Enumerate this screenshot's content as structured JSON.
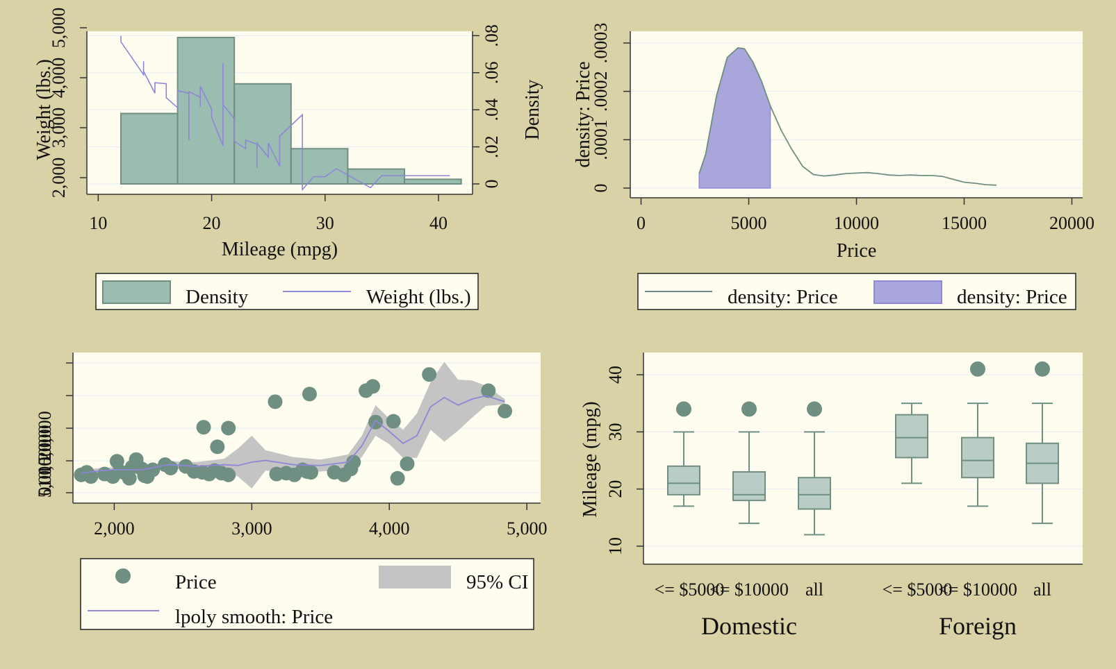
{
  "colors": {
    "background": "#d8d2a6",
    "plot_bg": "#fffcf0",
    "teal": "#6f8f82",
    "teal_fill": "#9bbcb0",
    "purple": "#8e86d6",
    "purple_fill": "#a9a6dc",
    "ci_gray": "#c4c4c4",
    "grid": "#e6eef2"
  },
  "chart_data": [
    {
      "type": "bar",
      "xlabel": "Mileage (mpg)",
      "ylabel_left": "Weight (lbs.)",
      "ylabel_right": "Density",
      "xlim": [
        9,
        43
      ],
      "ylim_density": [
        0,
        0.085
      ],
      "ylim_weight": [
        1500,
        5250
      ],
      "x_ticks": [
        "10",
        "20",
        "30",
        "40"
      ],
      "y_ticks_density": [
        "0",
        ".02",
        ".04",
        ".06",
        ".08"
      ],
      "y_ticks_weight": [
        "2,000",
        "3,000",
        "4,000",
        "5,000"
      ],
      "bins": [
        [
          12,
          17
        ],
        [
          17,
          22
        ],
        [
          22,
          27
        ],
        [
          27,
          32
        ],
        [
          32,
          37
        ],
        [
          37,
          42
        ]
      ],
      "density": [
        0.038,
        0.079,
        0.054,
        0.019,
        0.008,
        0.0025
      ],
      "weight_x": [
        12,
        12,
        14,
        14,
        14,
        15,
        15,
        16,
        16,
        16,
        17,
        17,
        17,
        18,
        18,
        18,
        19,
        19,
        19,
        20,
        20,
        21,
        21,
        21,
        22,
        22,
        22,
        23,
        23,
        24,
        24,
        24,
        25,
        25,
        26,
        26,
        28,
        28,
        28,
        29,
        30,
        31,
        34,
        35,
        41
      ],
      "weight_y": [
        4840,
        4720,
        4060,
        4330,
        4130,
        3690,
        3900,
        3880,
        3670,
        3600,
        3400,
        3470,
        3740,
        3690,
        2750,
        3720,
        3610,
        3420,
        3830,
        3370,
        3210,
        2640,
        4290,
        3460,
        3180,
        2830,
        2730,
        2580,
        2750,
        2670,
        2200,
        2690,
        2410,
        2690,
        2230,
        2830,
        3260,
        2750,
        1760,
        2020,
        2020,
        2180,
        1800,
        2040,
        2040
      ],
      "legend": [
        "Density",
        "Weight (lbs.)"
      ]
    },
    {
      "type": "area",
      "xlabel": "Price",
      "ylabel": "density: Price",
      "xlim": [
        -500,
        20500
      ],
      "ylim": [
        0,
        0.00031
      ],
      "x_ticks": [
        "0",
        "5000",
        "10000",
        "15000",
        "20000"
      ],
      "y_ticks": [
        "0",
        ".0001",
        ".0002",
        ".0003"
      ],
      "x": [
        2700,
        3000,
        3500,
        4000,
        4500,
        4800,
        5200,
        5600,
        6000,
        6500,
        7000,
        7500,
        8000,
        8500,
        9000,
        9500,
        10000,
        10500,
        11000,
        11500,
        12000,
        12500,
        13000,
        13500,
        14000,
        14500,
        15000,
        15500,
        16000,
        16500
      ],
      "density": [
        3e-05,
        7e-05,
        0.00019,
        0.00027,
        0.00029,
        0.000288,
        0.00026,
        0.00022,
        0.00017,
        0.00012,
        8e-05,
        4.5e-05,
        2.8e-05,
        2.5e-05,
        2.7e-05,
        3e-05,
        3.1e-05,
        3.2e-05,
        3e-05,
        2.7e-05,
        2.6e-05,
        2.7e-05,
        2.6e-05,
        2.6e-05,
        2.4e-05,
        1.8e-05,
        1.2e-05,
        1e-05,
        7e-06,
        6e-06
      ],
      "shaded_range": [
        2700,
        6000
      ],
      "legend": [
        "density: Price",
        "density: Price"
      ]
    },
    {
      "type": "scatter",
      "xlim": [
        1700,
        5100
      ],
      "ylim": [
        2000,
        17500
      ],
      "x_ticks": [
        "2,000",
        "3,000",
        "4,000",
        "5,000"
      ],
      "y_ticks": [
        "0",
        "5,000",
        "10,000",
        "15,000",
        "20,000"
      ],
      "points_x": [
        1760,
        1800,
        1830,
        1930,
        1990,
        2020,
        2040,
        2080,
        2110,
        2130,
        2160,
        2200,
        2220,
        2240,
        2280,
        2370,
        2410,
        2520,
        2580,
        2640,
        2650,
        2690,
        2730,
        2750,
        2780,
        2830,
        2830,
        3170,
        3180,
        3250,
        3310,
        3370,
        3400,
        3420,
        3430,
        3600,
        3670,
        3720,
        3740,
        3830,
        3880,
        3900,
        4030,
        4060,
        4130,
        4290,
        4720,
        4840
      ],
      "points_y": [
        4100,
        4400,
        3900,
        4200,
        3900,
        5700,
        4500,
        4300,
        3700,
        5000,
        5900,
        4800,
        4000,
        3900,
        4700,
        5300,
        4900,
        5100,
        4500,
        4400,
        9700,
        4200,
        4600,
        7400,
        4300,
        4100,
        9600,
        12700,
        4200,
        4300,
        4100,
        4700,
        4500,
        13600,
        4400,
        4400,
        4100,
        4800,
        5600,
        14000,
        14500,
        10300,
        10400,
        3700,
        5400,
        15900,
        14000,
        11600
      ],
      "smooth_x": [
        1760,
        1900,
        2000,
        2200,
        2400,
        2600,
        2800,
        2900,
        3000,
        3100,
        3300,
        3500,
        3700,
        3800,
        3900,
        4000,
        4100,
        4200,
        4300,
        4400,
        4500,
        4600,
        4700,
        4840
      ],
      "smooth_y": [
        4300,
        4600,
        4700,
        4700,
        5300,
        5100,
        5300,
        5200,
        5600,
        5800,
        5300,
        5200,
        5600,
        7500,
        10500,
        9200,
        7800,
        8700,
        12100,
        13200,
        12300,
        13000,
        13400,
        12700
      ],
      "ci_lower": [
        4000,
        4300,
        4400,
        4400,
        4900,
        4600,
        4600,
        3900,
        2500,
        4600,
        4400,
        4500,
        4700,
        6200,
        8700,
        7700,
        6100,
        6100,
        9400,
        8000,
        9300,
        10800,
        12200,
        12400
      ],
      "ci_upper": [
        4700,
        4900,
        5000,
        5000,
        5700,
        5600,
        6000,
        7200,
        8700,
        7000,
        6200,
        5900,
        6500,
        8700,
        12300,
        10700,
        9400,
        11300,
        15000,
        17400,
        15300,
        15200,
        14600,
        13000
      ],
      "legend": [
        "Price",
        "95% CI",
        "lpoly smooth: Price"
      ]
    },
    {
      "type": "box",
      "ylabel": "Mileage (mpg)",
      "ylim": [
        7,
        44
      ],
      "y_ticks": [
        "10",
        "20",
        "30",
        "40"
      ],
      "group_labels": [
        "Domestic",
        "Foreign"
      ],
      "box_labels": [
        "<= $5000",
        "<= $10000",
        "all",
        "<= $5000",
        "<= $10000",
        "all"
      ],
      "boxes": [
        {
          "min": 17,
          "q1": 19,
          "median": 21,
          "q3": 24,
          "max": 30,
          "outliers": [
            34
          ]
        },
        {
          "min": 14,
          "q1": 18,
          "median": 19,
          "q3": 23,
          "max": 30,
          "outliers": [
            34
          ]
        },
        {
          "min": 12,
          "q1": 16.5,
          "median": 19,
          "q3": 22,
          "max": 30,
          "outliers": [
            34
          ]
        },
        {
          "min": 21,
          "q1": 25.5,
          "median": 29,
          "q3": 33,
          "max": 35,
          "outliers": []
        },
        {
          "min": 17,
          "q1": 22,
          "median": 25,
          "q3": 29,
          "max": 35,
          "outliers": [
            41
          ]
        },
        {
          "min": 14,
          "q1": 21,
          "median": 24.5,
          "q3": 28,
          "max": 35,
          "outliers": [
            41
          ]
        }
      ]
    }
  ]
}
